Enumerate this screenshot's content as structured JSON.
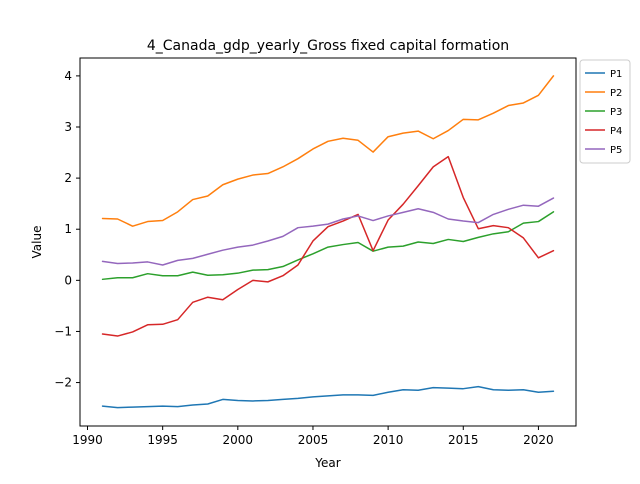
{
  "chart_data": {
    "type": "line",
    "title": "4_Canada_gdp_yearly_Gross fixed capital formation",
    "xlabel": "Year",
    "ylabel": "Value",
    "xlim": [
      1989.5,
      2022.5
    ],
    "ylim": [
      -2.85,
      4.35
    ],
    "xticks": [
      1990,
      1995,
      2000,
      2005,
      2010,
      2015,
      2020
    ],
    "yticks": [
      -2,
      -1,
      0,
      1,
      2,
      3,
      4
    ],
    "grid": false,
    "legend_position": "outside-top-right",
    "x": [
      1991,
      1992,
      1993,
      1994,
      1995,
      1996,
      1997,
      1998,
      1999,
      2000,
      2001,
      2002,
      2003,
      2004,
      2005,
      2006,
      2007,
      2008,
      2009,
      2010,
      2011,
      2012,
      2013,
      2014,
      2015,
      2016,
      2017,
      2018,
      2019,
      2020,
      2021
    ],
    "series": [
      {
        "name": "P1",
        "color": "#1f77b4",
        "values": [
          -2.46,
          -2.49,
          -2.48,
          -2.47,
          -2.46,
          -2.47,
          -2.44,
          -2.42,
          -2.33,
          -2.35,
          -2.36,
          -2.35,
          -2.33,
          -2.31,
          -2.28,
          -2.26,
          -2.24,
          -2.24,
          -2.25,
          -2.19,
          -2.14,
          -2.15,
          -2.1,
          -2.11,
          -2.12,
          -2.08,
          -2.14,
          -2.15,
          -2.14,
          -2.19,
          -2.17
        ]
      },
      {
        "name": "P2",
        "color": "#ff7f0e",
        "values": [
          1.21,
          1.2,
          1.06,
          1.15,
          1.17,
          1.34,
          1.58,
          1.65,
          1.87,
          1.98,
          2.06,
          2.09,
          2.22,
          2.38,
          2.57,
          2.72,
          2.78,
          2.74,
          2.51,
          2.81,
          2.88,
          2.92,
          2.77,
          2.93,
          3.15,
          3.14,
          3.27,
          3.42,
          3.47,
          3.62,
          4.0
        ]
      },
      {
        "name": "P3",
        "color": "#2ca02c",
        "values": [
          0.02,
          0.05,
          0.05,
          0.13,
          0.09,
          0.09,
          0.16,
          0.1,
          0.11,
          0.14,
          0.2,
          0.21,
          0.27,
          0.4,
          0.52,
          0.65,
          0.7,
          0.74,
          0.57,
          0.65,
          0.67,
          0.75,
          0.72,
          0.8,
          0.76,
          0.84,
          0.91,
          0.95,
          1.12,
          1.15,
          1.34
        ]
      },
      {
        "name": "P4",
        "color": "#d62728",
        "values": [
          -1.05,
          -1.09,
          -1.01,
          -0.87,
          -0.86,
          -0.77,
          -0.43,
          -0.33,
          -0.38,
          -0.18,
          0.0,
          -0.03,
          0.09,
          0.3,
          0.77,
          1.05,
          1.16,
          1.29,
          0.58,
          1.18,
          1.49,
          1.85,
          2.22,
          2.42,
          1.62,
          1.01,
          1.07,
          1.03,
          0.83,
          0.44,
          0.58
        ]
      },
      {
        "name": "P5",
        "color": "#9467bd",
        "values": [
          0.37,
          0.33,
          0.34,
          0.36,
          0.3,
          0.39,
          0.43,
          0.51,
          0.59,
          0.65,
          0.69,
          0.77,
          0.86,
          1.03,
          1.06,
          1.1,
          1.2,
          1.26,
          1.17,
          1.26,
          1.33,
          1.4,
          1.33,
          1.2,
          1.16,
          1.13,
          1.29,
          1.39,
          1.47,
          1.45,
          1.61
        ]
      }
    ]
  }
}
